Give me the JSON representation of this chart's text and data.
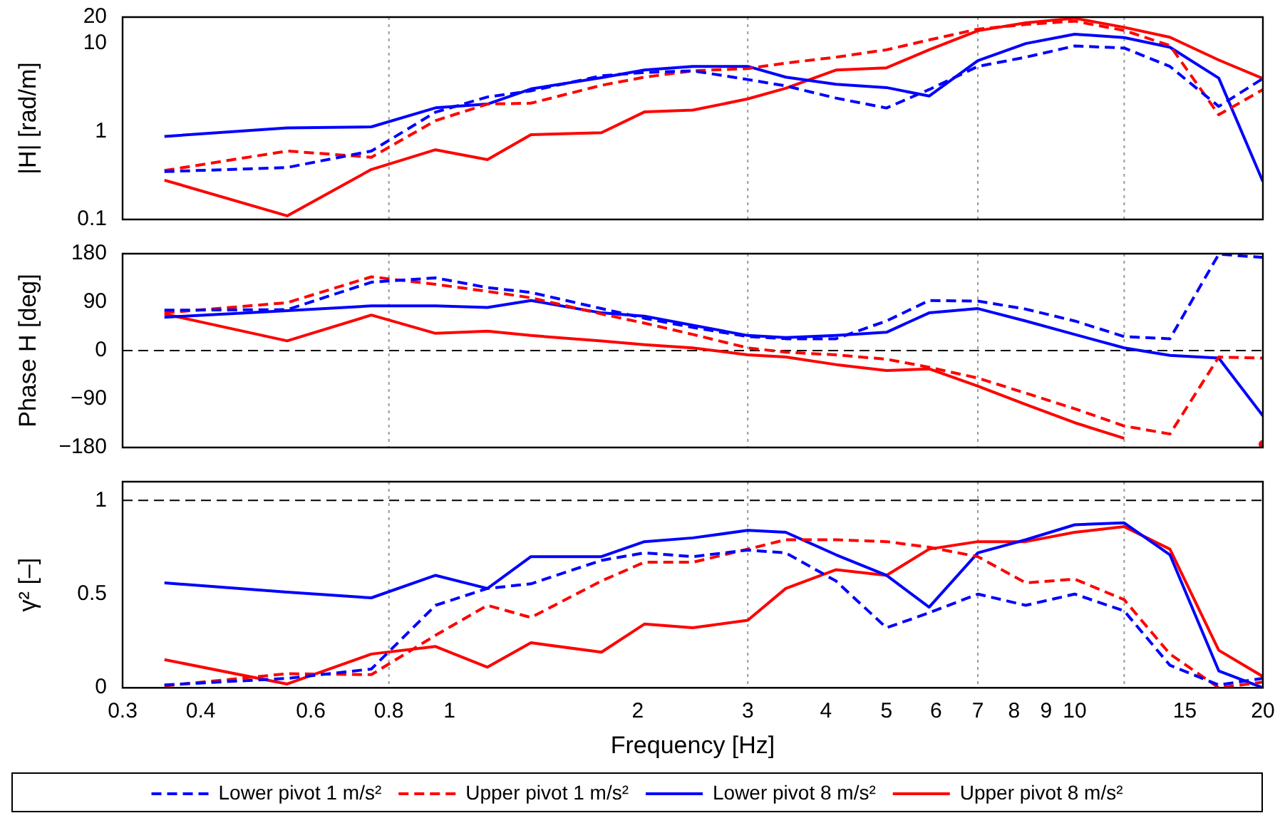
{
  "chart_data": [
    {
      "type": "line",
      "ylabel": "|H| [rad/m]",
      "log": "xy",
      "xlim": [
        0.3,
        20
      ],
      "xticks": [
        0.3,
        0.4,
        0.6,
        0.8,
        1,
        2,
        3,
        4,
        5,
        6,
        7,
        8,
        9,
        10,
        15,
        20
      ],
      "ylim": [
        0.1,
        20
      ],
      "yticks": [
        0.1,
        1,
        10,
        20
      ],
      "tick_labels": "y",
      "x": [
        0.35,
        0.55,
        0.75,
        0.95,
        1.15,
        1.35,
        1.75,
        2.05,
        2.45,
        3,
        3.45,
        4.15,
        5,
        5.85,
        7,
        8.35,
        10,
        12,
        14.2,
        17,
        20
      ],
      "ref_lines": [
        {
          "axis": "x",
          "value": 0.8,
          "color": "#999999",
          "line_style": "dotted"
        },
        {
          "axis": "x",
          "value": 3,
          "color": "#999999",
          "line_style": "dotted"
        },
        {
          "axis": "x",
          "value": 7,
          "color": "#999999",
          "line_style": "dotted"
        },
        {
          "axis": "x",
          "value": 12,
          "color": "#999999",
          "line_style": "dotted"
        }
      ],
      "series": [
        {
          "color": "#0000ff",
          "line_style": "dashed",
          "values": [
            0.35,
            0.39,
            0.6,
            1.66,
            2.47,
            2.9,
            4.3,
            4.7,
            4.9,
            3.9,
            3.3,
            2.4,
            1.85,
            3.0,
            5.5,
            7.0,
            9.4,
            8.9,
            5.5,
            1.93,
            4.0
          ]
        },
        {
          "color": "#ff0000",
          "line_style": "dashed",
          "values": [
            0.36,
            0.6,
            0.51,
            1.33,
            2.05,
            2.1,
            3.35,
            4.15,
            4.9,
            5.2,
            6.0,
            7.0,
            8.5,
            11,
            14.6,
            16.5,
            18,
            14.1,
            9.5,
            1.55,
            3.0
          ]
        },
        {
          "color": "#0000ff",
          "line_style": "solid",
          "values": [
            0.88,
            1.1,
            1.13,
            1.86,
            2.05,
            3.05,
            4.1,
            5.0,
            5.5,
            5.5,
            4.15,
            3.45,
            3.16,
            2.53,
            6.4,
            10,
            12.8,
            11.7,
            9.1,
            4.05,
            0.27
          ]
        },
        {
          "color": "#ff0000",
          "line_style": "solid",
          "values": [
            0.28,
            0.11,
            0.37,
            0.62,
            0.48,
            0.92,
            0.97,
            1.67,
            1.75,
            2.35,
            3.1,
            5.0,
            5.3,
            8.5,
            14,
            17.2,
            19.4,
            15.3,
            11.8,
            6.5,
            4.0
          ]
        }
      ]
    },
    {
      "type": "line",
      "ylabel": "Phase H [deg]",
      "log": "x",
      "xlim": [
        0.3,
        20
      ],
      "xticks": [
        0.3,
        0.4,
        0.6,
        0.8,
        1,
        2,
        3,
        4,
        5,
        6,
        7,
        8,
        9,
        10,
        15,
        20
      ],
      "ylim": [
        -180,
        180
      ],
      "yticks": [
        {
          "value": -180,
          "label": "−180"
        },
        {
          "value": -90,
          "label": "−90"
        },
        0,
        90,
        180
      ],
      "tick_labels": "y",
      "x": [
        0.35,
        0.55,
        0.75,
        0.95,
        1.15,
        1.35,
        1.75,
        2.05,
        2.45,
        3,
        3.45,
        4.15,
        5,
        5.85,
        7,
        8.35,
        10,
        12,
        14.2,
        17,
        20
      ],
      "ref_lines": [
        {
          "axis": "y",
          "value": 0,
          "color": "#000000",
          "line_style": "dashed"
        },
        {
          "axis": "x",
          "value": 0.8,
          "color": "#999999",
          "line_style": "dotted"
        },
        {
          "axis": "x",
          "value": 3,
          "color": "#999999",
          "line_style": "dotted"
        },
        {
          "axis": "x",
          "value": 7,
          "color": "#999999",
          "line_style": "dotted"
        },
        {
          "axis": "x",
          "value": 12,
          "color": "#999999",
          "line_style": "dotted"
        }
      ],
      "series": [
        {
          "color": "#0000ff",
          "line_style": "dashed",
          "values": [
            75,
            76,
            127,
            135,
            117,
            108,
            78,
            60,
            43,
            26,
            22,
            22,
            55,
            93,
            92,
            77,
            55,
            26,
            22,
            179,
            173
          ]
        },
        {
          "color": "#ff0000",
          "line_style": "dashed",
          "values": [
            70,
            89,
            137,
            123,
            110,
            98,
            68,
            51,
            30,
            5,
            -3,
            -8,
            -16,
            -31,
            -51,
            -79,
            -108,
            -140,
            -155,
            -12,
            -14
          ]
        },
        {
          "color": "#0000ff",
          "line_style": "solid",
          "values": [
            62,
            74,
            83,
            83,
            80,
            93,
            70,
            64,
            47,
            28,
            24,
            28,
            34,
            70,
            78,
            55,
            30,
            5,
            -9,
            -14,
            -121
          ]
        },
        {
          "color": "#ff0000",
          "line_style": "solid",
          "values": [
            68,
            18,
            66,
            32,
            36,
            28,
            18,
            11,
            5,
            -8,
            -12,
            -26,
            -37,
            -34,
            -66,
            -100,
            -134,
            -163,
            null,
            null,
            -174
          ]
        }
      ]
    },
    {
      "type": "line",
      "ylabel": "γ² [–]",
      "xlabel": "Frequency [Hz]",
      "log": "x",
      "xlim": [
        0.3,
        20
      ],
      "xticks": [
        0.3,
        0.4,
        0.6,
        0.8,
        1,
        2,
        3,
        4,
        5,
        6,
        7,
        8,
        9,
        10,
        15,
        20
      ],
      "ylim": [
        0,
        1.1
      ],
      "yticks": [
        0,
        0.5,
        1
      ],
      "legend": "bottom",
      "x": [
        0.35,
        0.55,
        0.75,
        0.95,
        1.15,
        1.35,
        1.75,
        2.05,
        2.45,
        3,
        3.45,
        4.15,
        5,
        5.85,
        7,
        8.35,
        10,
        12,
        14.2,
        17,
        20
      ],
      "ref_lines": [
        {
          "axis": "y",
          "value": 1,
          "color": "#000000",
          "line_style": "dashed"
        },
        {
          "axis": "x",
          "value": 0.8,
          "color": "#999999",
          "line_style": "dotted"
        },
        {
          "axis": "x",
          "value": 3,
          "color": "#999999",
          "line_style": "dotted"
        },
        {
          "axis": "x",
          "value": 7,
          "color": "#999999",
          "line_style": "dotted"
        },
        {
          "axis": "x",
          "value": 12,
          "color": "#999999",
          "line_style": "dotted"
        }
      ],
      "series": [
        {
          "name": "Lower pivot 1 m/s²",
          "color": "#0000ff",
          "line_style": "dashed",
          "values": [
            0.015,
            0.05,
            0.1,
            0.44,
            0.53,
            0.555,
            0.68,
            0.72,
            0.7,
            0.735,
            0.72,
            0.57,
            0.32,
            0.4,
            0.5,
            0.44,
            0.5,
            0.41,
            0.12,
            0.015,
            0.05
          ]
        },
        {
          "name": "Upper pivot 1 m/s²",
          "color": "#ff0000",
          "line_style": "dashed",
          "values": [
            0.01,
            0.075,
            0.07,
            0.28,
            0.44,
            0.375,
            0.57,
            0.67,
            0.67,
            0.74,
            0.79,
            0.79,
            0.78,
            0.75,
            0.7,
            0.56,
            0.58,
            0.47,
            0.18,
            0,
            0.03
          ]
        },
        {
          "name": "Lower pivot 8 m/s²",
          "color": "#0000ff",
          "line_style": "solid",
          "values": [
            0.56,
            0.51,
            0.48,
            0.6,
            0.53,
            0.7,
            0.7,
            0.78,
            0.8,
            0.84,
            0.83,
            0.71,
            0.6,
            0.43,
            0.72,
            0.79,
            0.87,
            0.88,
            0.71,
            0.09,
            0
          ]
        },
        {
          "name": "Upper pivot 8 m/s²",
          "color": "#ff0000",
          "line_style": "solid",
          "values": [
            0.15,
            0.02,
            0.18,
            0.22,
            0.11,
            0.24,
            0.19,
            0.34,
            0.32,
            0.36,
            0.53,
            0.63,
            0.6,
            0.74,
            0.78,
            0.78,
            0.83,
            0.86,
            0.74,
            0.2,
            0.06
          ]
        }
      ]
    }
  ]
}
